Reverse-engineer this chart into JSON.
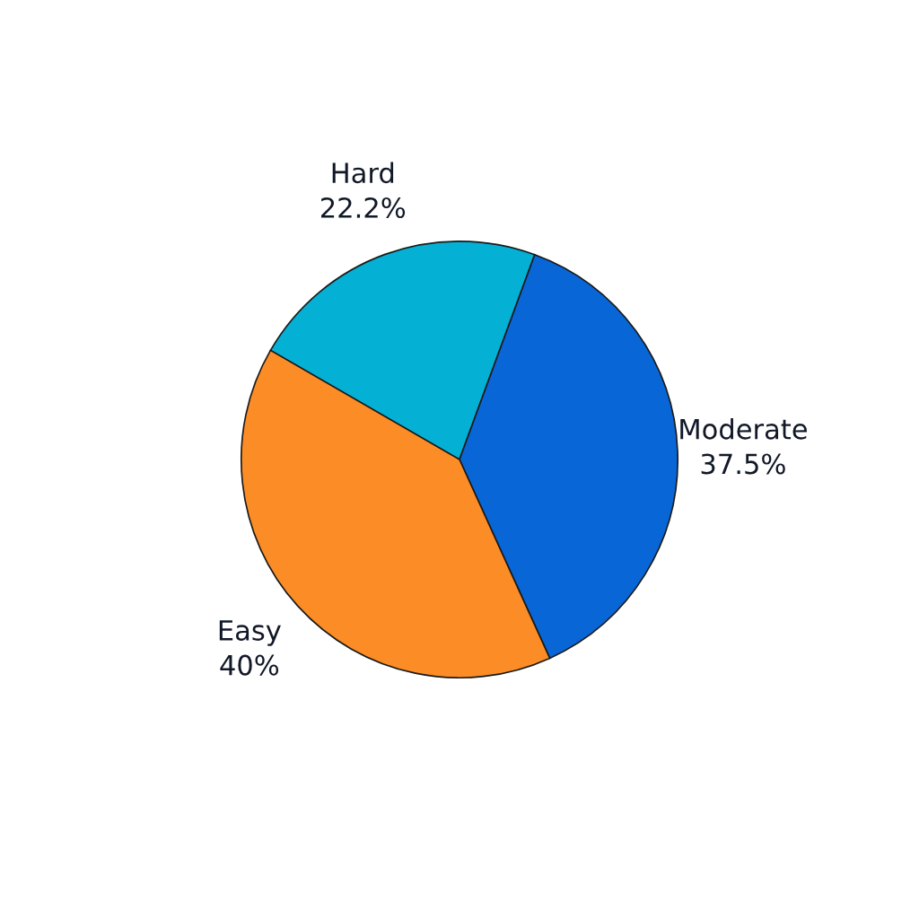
{
  "chart_data": {
    "type": "pie",
    "categories": [
      "Hard",
      "Moderate",
      "Easy"
    ],
    "values": [
      22.2,
      37.5,
      40
    ],
    "colors": [
      "#04b0d4",
      "#0866d6",
      "#fb8c26"
    ],
    "value_labels": [
      "22.2%",
      "37.5%",
      "40%"
    ]
  }
}
